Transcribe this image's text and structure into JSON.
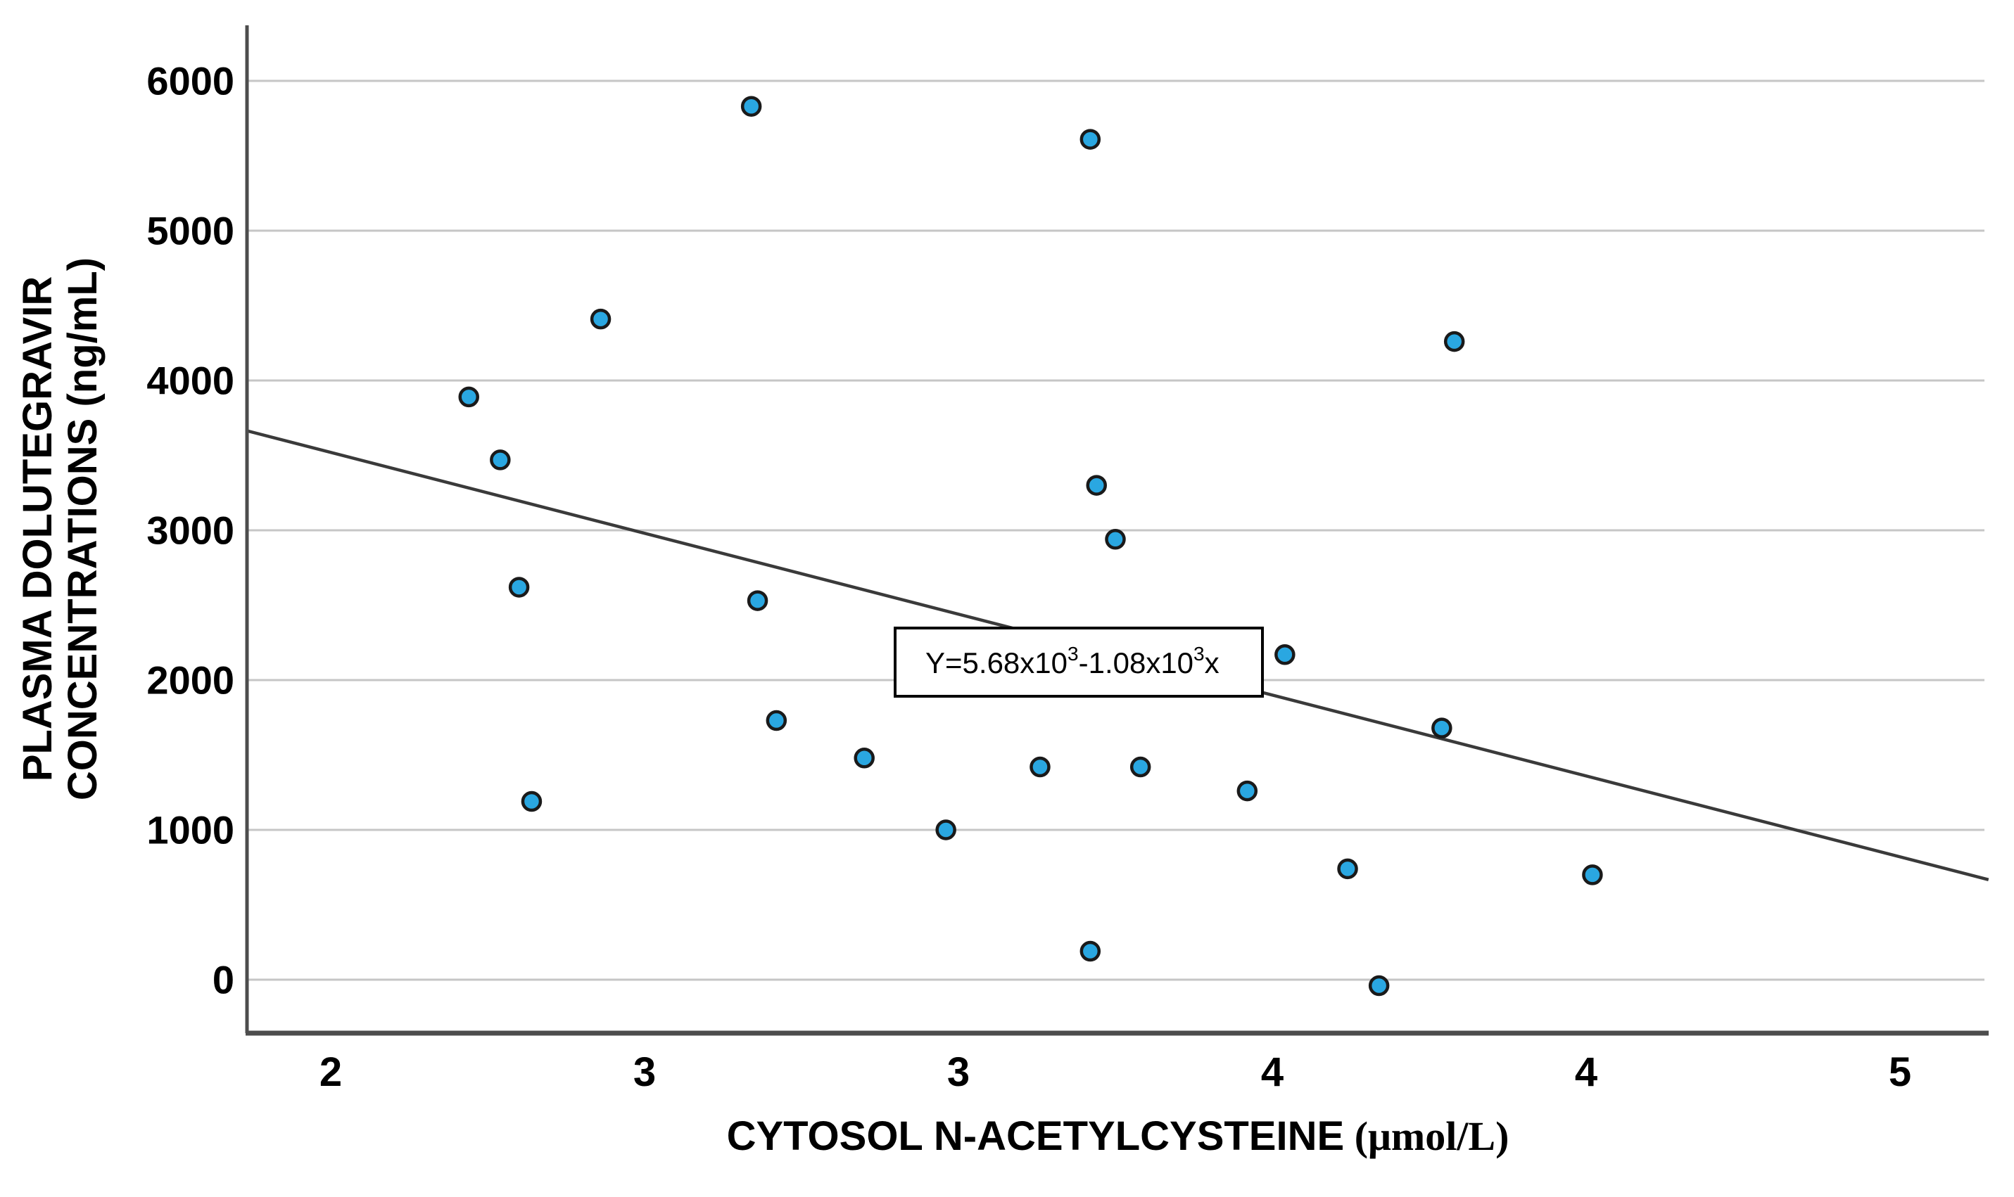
{
  "y_axis": {
    "title_line1": "PLASMA DOLUTEGRAVIR",
    "title_line2": "CONCENTRATIONS (ng/mL)"
  },
  "x_axis": {
    "title_main": "CYTOSOL N-ACETYLCYSTEINE",
    "title_unit": " (μmol/L)"
  },
  "equation": {
    "plain": "Y=5.68x10³-1.08x10³x",
    "segments": [
      {
        "t": "Y=5.68x10"
      },
      {
        "t": "3",
        "sup": true
      },
      {
        "t": "-1.08x10"
      },
      {
        "t": "3",
        "sup": true
      },
      {
        "t": "x"
      }
    ]
  },
  "chart_data": {
    "type": "scatter",
    "title": "",
    "xlabel": "CYTOSOL N-ACETYLCYSTEINE (μmol/L)",
    "ylabel": "PLASMA DOLUTEGRAVIR CONCENTRATIONS (ng/mL)",
    "xlim": [
      1.87,
      4.64
    ],
    "ylim": [
      -350,
      6360
    ],
    "grid": "horizontal",
    "legend": "none",
    "x_ticks": [
      {
        "value": 2.0,
        "label": "2"
      },
      {
        "value": 2.5,
        "label": "3"
      },
      {
        "value": 3.0,
        "label": "3"
      },
      {
        "value": 3.5,
        "label": "4"
      },
      {
        "value": 4.0,
        "label": "4"
      },
      {
        "value": 4.5,
        "label": "5"
      }
    ],
    "y_ticks": [
      {
        "value": 0,
        "label": "0"
      },
      {
        "value": 1000,
        "label": "1000"
      },
      {
        "value": 2000,
        "label": "2000"
      },
      {
        "value": 3000,
        "label": "3000"
      },
      {
        "value": 4000,
        "label": "4000"
      },
      {
        "value": 5000,
        "label": "5000"
      },
      {
        "value": 6000,
        "label": "6000"
      }
    ],
    "points": [
      {
        "x": 2.22,
        "y": 3890
      },
      {
        "x": 2.27,
        "y": 3470
      },
      {
        "x": 2.3,
        "y": 2620
      },
      {
        "x": 2.32,
        "y": 1190
      },
      {
        "x": 2.43,
        "y": 4410
      },
      {
        "x": 2.67,
        "y": 5830
      },
      {
        "x": 2.68,
        "y": 2530
      },
      {
        "x": 2.71,
        "y": 1730
      },
      {
        "x": 2.85,
        "y": 1480
      },
      {
        "x": 2.98,
        "y": 1000
      },
      {
        "x": 3.13,
        "y": 1420
      },
      {
        "x": 3.21,
        "y": 5610
      },
      {
        "x": 3.21,
        "y": 190
      },
      {
        "x": 3.22,
        "y": 3300
      },
      {
        "x": 3.25,
        "y": 2940
      },
      {
        "x": 3.29,
        "y": 1420
      },
      {
        "x": 3.46,
        "y": 1260
      },
      {
        "x": 3.52,
        "y": 2170
      },
      {
        "x": 3.62,
        "y": 740
      },
      {
        "x": 3.67,
        "y": -40
      },
      {
        "x": 3.77,
        "y": 1680
      },
      {
        "x": 3.79,
        "y": 4260
      },
      {
        "x": 4.01,
        "y": 700
      }
    ],
    "trendline": {
      "intercept": 5680,
      "slope": -1080,
      "x_start": 1.868,
      "x_end": 4.641
    },
    "colors": {
      "point_fill": "#2AA7E1",
      "point_stroke": "#1A1A1A",
      "grid": "#C6C6C6",
      "axis": "#4D4D4D",
      "trend": "#3A3A3A",
      "equation_box_border": "#000000",
      "equation_box_fill": "#FFFFFF"
    }
  }
}
